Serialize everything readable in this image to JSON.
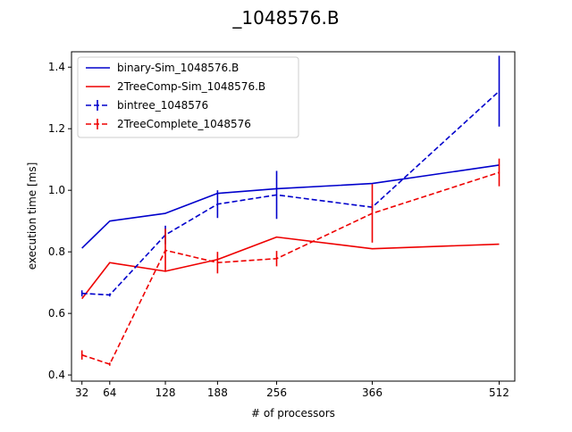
{
  "chart_data": {
    "type": "line",
    "title": "_1048576.B",
    "xlabel": "# of processors",
    "ylabel": "execution time [ms]",
    "xlim": [
      20,
      530
    ],
    "ylim": [
      0.38,
      1.45
    ],
    "x_ticks": [
      32,
      64,
      128,
      188,
      256,
      366,
      512
    ],
    "y_ticks": [
      0.4,
      0.6,
      0.8,
      1.0,
      1.2,
      1.4
    ],
    "y_tick_labels": [
      "0.4",
      "0.6",
      "0.8",
      "1.0",
      "1.2",
      "1.4"
    ],
    "grid": false,
    "legend_position": "top-left",
    "series": [
      {
        "name": "binary-Sim_1048576.B",
        "color": "#0000cc",
        "style": "solid",
        "x": [
          32,
          64,
          128,
          188,
          256,
          366,
          512
        ],
        "y": [
          0.812,
          0.9,
          0.925,
          0.99,
          1.005,
          1.022,
          1.082
        ]
      },
      {
        "name": "2TreeComp-Sim_1048576.B",
        "color": "#ee0000",
        "style": "solid",
        "x": [
          32,
          64,
          128,
          188,
          256,
          366,
          512
        ],
        "y": [
          0.648,
          0.765,
          0.737,
          0.775,
          0.848,
          0.81,
          0.825
        ]
      },
      {
        "name": "bintree_1048576",
        "color": "#0000cc",
        "style": "dashed",
        "x": [
          32,
          64,
          128,
          188,
          256,
          366,
          512
        ],
        "y": [
          0.665,
          0.66,
          0.855,
          0.955,
          0.985,
          0.945,
          1.322
        ],
        "err": [
          0.01,
          0.005,
          0.03,
          0.045,
          0.078,
          0.01,
          0.115
        ]
      },
      {
        "name": "2TreeComplete_1048576",
        "color": "#ee0000",
        "style": "dashed",
        "x": [
          32,
          64,
          128,
          188,
          256,
          366,
          512
        ],
        "y": [
          0.465,
          0.435,
          0.805,
          0.765,
          0.778,
          0.925,
          1.058
        ],
        "err": [
          0.015,
          0.005,
          0.07,
          0.035,
          0.025,
          0.095,
          0.045
        ]
      }
    ]
  }
}
